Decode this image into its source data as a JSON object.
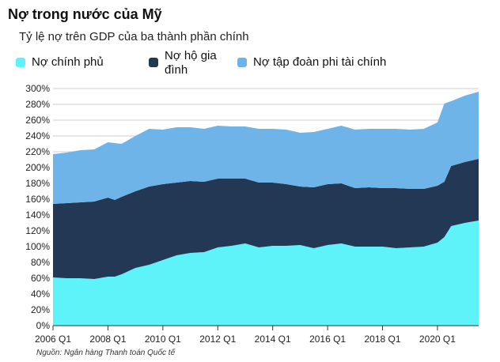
{
  "header": {
    "title": "Nợ trong nước của Mỹ",
    "subtitle": "Tỷ lệ nợ trên GDP của ba thành phần chính"
  },
  "footer": {
    "source": "Nguồn: Ngân hàng Thanh toán Quốc tế"
  },
  "chart_data": {
    "type": "area",
    "stacked": true,
    "title": "Nợ trong nước của Mỹ",
    "subtitle": "Tỷ lệ nợ trên GDP của ba thành phần chính",
    "xlabel": "",
    "ylabel": "",
    "xlim": [
      2006.0,
      2021.5
    ],
    "ylim": [
      0,
      300
    ],
    "y_ticks": [
      0,
      20,
      40,
      60,
      80,
      100,
      120,
      140,
      160,
      180,
      200,
      220,
      240,
      260,
      280,
      300
    ],
    "y_tick_suffix": "%",
    "x_ticks": [
      {
        "value": 2006,
        "label": "2006 Q1"
      },
      {
        "value": 2008,
        "label": "2008 Q1"
      },
      {
        "value": 2010,
        "label": "2010 Q1"
      },
      {
        "value": 2012,
        "label": "2012 Q1"
      },
      {
        "value": 2014,
        "label": "2014 Q1"
      },
      {
        "value": 2016,
        "label": "2016 Q1"
      },
      {
        "value": 2018,
        "label": "2018 Q1"
      },
      {
        "value": 2020,
        "label": "2020 Q1"
      }
    ],
    "grid": true,
    "legend_position": "top",
    "x": [
      2006.0,
      2006.5,
      2007.0,
      2007.5,
      2008.0,
      2008.25,
      2008.5,
      2009.0,
      2009.5,
      2010.0,
      2010.5,
      2011.0,
      2011.5,
      2012.0,
      2012.5,
      2013.0,
      2013.5,
      2014.0,
      2014.5,
      2015.0,
      2015.5,
      2016.0,
      2016.5,
      2017.0,
      2017.5,
      2018.0,
      2018.5,
      2019.0,
      2019.5,
      2020.0,
      2020.25,
      2020.5,
      2021.0,
      2021.5
    ],
    "series": [
      {
        "name": "Nợ chính phủ",
        "color": "#5df3f8",
        "values": [
          61,
          60,
          60,
          59,
          62,
          62,
          65,
          73,
          77,
          83,
          89,
          92,
          93,
          99,
          101,
          104,
          99,
          101,
          101,
          102,
          98,
          102,
          104,
          100,
          100,
          100,
          98,
          99,
          100,
          105,
          112,
          126,
          130,
          133
        ]
      },
      {
        "name": "Nợ hộ gia đình",
        "color": "#233854",
        "values": [
          93,
          95,
          96,
          98,
          100,
          97,
          98,
          97,
          99,
          96,
          92,
          91,
          89,
          87,
          85,
          82,
          82,
          80,
          78,
          74,
          77,
          77,
          76,
          74,
          75,
          74,
          76,
          74,
          73,
          72,
          70,
          76,
          77,
          78
        ]
      },
      {
        "name": "Nợ tập đoàn phi tài chính",
        "color": "#6eb4e8",
        "values": [
          63,
          64,
          66,
          66,
          70,
          72,
          67,
          70,
          73,
          69,
          70,
          68,
          67,
          67,
          66,
          66,
          68,
          68,
          69,
          68,
          70,
          70,
          73,
          74,
          74,
          75,
          75,
          75,
          76,
          80,
          99,
          82,
          84,
          85
        ]
      }
    ]
  }
}
